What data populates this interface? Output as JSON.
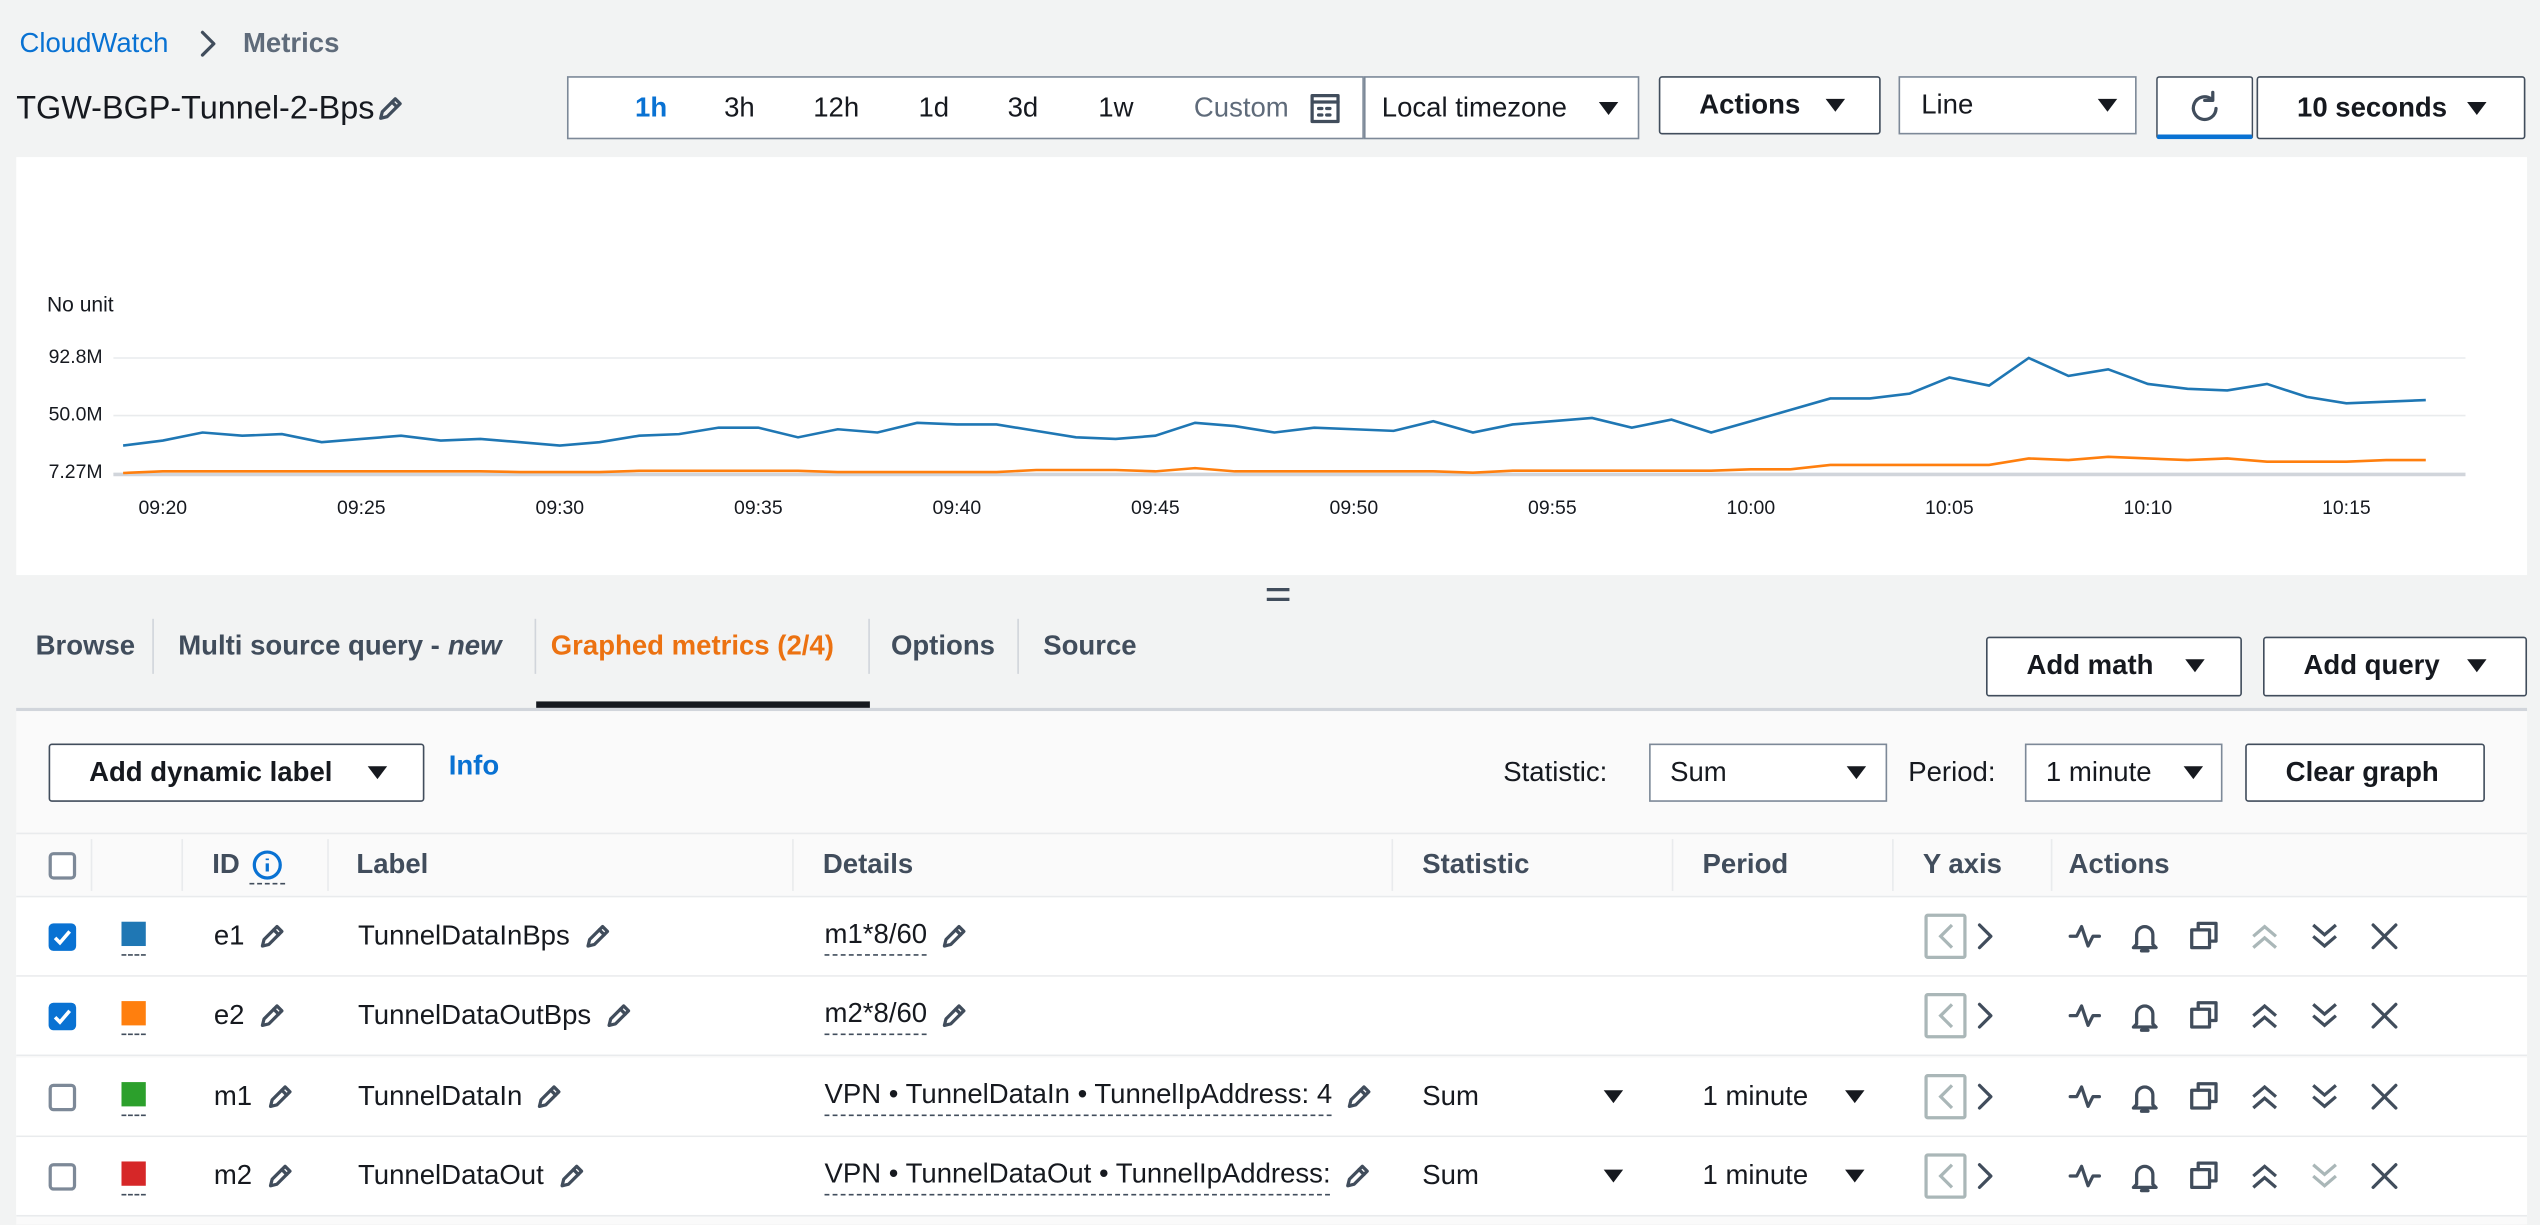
{
  "breadcrumb": [
    "CloudWatch",
    "Metrics"
  ],
  "title": "TGW-BGP-Tunnel-2-Bps",
  "time_ranges": [
    {
      "label": "1h",
      "selected": true
    },
    {
      "label": "3h"
    },
    {
      "label": "12h"
    },
    {
      "label": "1d"
    },
    {
      "label": "3d"
    },
    {
      "label": "1w"
    },
    {
      "label": "Custom"
    }
  ],
  "timezone": "Local timezone",
  "actions": "Actions",
  "graph_type": "Line",
  "refresh_interval": "10 seconds",
  "chart_data": {
    "type": "line",
    "ylabel": "No unit",
    "x": [
      "09:19",
      "09:20",
      "09:21",
      "09:22",
      "09:23",
      "09:24",
      "09:25",
      "09:26",
      "09:27",
      "09:28",
      "09:29",
      "09:30",
      "09:31",
      "09:32",
      "09:33",
      "09:34",
      "09:35",
      "09:36",
      "09:37",
      "09:38",
      "09:39",
      "09:40",
      "09:41",
      "09:42",
      "09:43",
      "09:44",
      "09:45",
      "09:46",
      "09:47",
      "09:48",
      "09:49",
      "09:50",
      "09:51",
      "09:52",
      "09:53",
      "09:54",
      "09:55",
      "09:56",
      "09:57",
      "09:58",
      "09:59",
      "10:00",
      "10:01",
      "10:02",
      "10:03",
      "10:04",
      "10:05",
      "10:06",
      "10:07",
      "10:08",
      "10:09",
      "10:10",
      "10:11",
      "10:12",
      "10:13",
      "10:14",
      "10:15",
      "10:16",
      "10:17"
    ],
    "series": [
      {
        "color": "#1f77b4",
        "values": [
          27700000,
          31400000,
          37400000,
          35000000,
          36200000,
          30200000,
          32600000,
          35000000,
          31400000,
          32600000,
          30200000,
          27700000,
          30200000,
          35000000,
          36200000,
          41000000,
          41000000,
          33800000,
          39800000,
          37400000,
          44600000,
          43400000,
          43400000,
          38600000,
          33800000,
          32600000,
          35000000,
          44600000,
          42200000,
          37400000,
          41000000,
          39800000,
          38600000,
          45800000,
          37400000,
          43400000,
          45800000,
          48200000,
          41000000,
          47000000,
          37400000,
          45800000,
          54200000,
          62700000,
          62700000,
          66300000,
          78300000,
          72300000,
          92800000,
          79500000,
          84400000,
          73500000,
          69900000,
          68700000,
          73500000,
          63900000,
          59100000,
          60300000,
          61500000
        ]
      },
      {
        "color": "#ff7f0e",
        "values": [
          7270000,
          8500000,
          8500000,
          8500000,
          8500000,
          8500000,
          8500000,
          8500000,
          8500000,
          8500000,
          8000000,
          8000000,
          8000000,
          8900000,
          8900000,
          8900000,
          8900000,
          8900000,
          8000000,
          8000000,
          8000000,
          8000000,
          8000000,
          9500000,
          9500000,
          9500000,
          8500000,
          10900000,
          8500000,
          8500000,
          8500000,
          8500000,
          8500000,
          8500000,
          7500000,
          9000000,
          9000000,
          9000000,
          9000000,
          9000000,
          9000000,
          10000000,
          10000000,
          13300000,
          13300000,
          13300000,
          13300000,
          13300000,
          18100000,
          16900000,
          19300000,
          18100000,
          16900000,
          18100000,
          15700000,
          15700000,
          15700000,
          16900000,
          16900000
        ]
      }
    ],
    "xlim": [
      "09:19",
      "10:18"
    ],
    "xticks": [
      "09:20",
      "09:25",
      "09:30",
      "09:35",
      "09:40",
      "09:45",
      "09:50",
      "09:55",
      "10:00",
      "10:05",
      "10:10",
      "10:15"
    ],
    "ylim": [
      7270000,
      92800000
    ],
    "yticks": [
      {
        "value": 92800000,
        "label": "92.8M"
      },
      {
        "value": 50000000,
        "label": "50.0M"
      },
      {
        "value": 7270000,
        "label": "7.27M"
      }
    ],
    "grid": true
  },
  "tabs": [
    {
      "label": "Browse"
    },
    {
      "label": "Multi source query -",
      "tag": "new"
    },
    {
      "label": "Graphed metrics (2/4)",
      "active": true
    },
    {
      "label": "Options"
    },
    {
      "label": "Source"
    }
  ],
  "tab_buttons": [
    "Add math",
    "Add query"
  ],
  "toolbar": {
    "add_dynamic_label": "Add dynamic label",
    "info": "Info",
    "statistic_label": "Statistic:",
    "statistic": "Sum",
    "period_label": "Period:",
    "period": "1 minute",
    "clear": "Clear graph"
  },
  "table": {
    "columns": [
      "ID",
      "Label",
      "Details",
      "Statistic",
      "Period",
      "Y axis",
      "Actions"
    ],
    "rows": [
      {
        "checked": true,
        "color": "#1f77b4",
        "id": "e1",
        "label": "TunnelDataInBps",
        "details": "m1*8/60",
        "can_move_up": false,
        "can_move_down": true
      },
      {
        "checked": true,
        "color": "#ff7f0e",
        "id": "e2",
        "label": "TunnelDataOutBps",
        "details": "m2*8/60",
        "can_move_up": true,
        "can_move_down": true
      },
      {
        "checked": false,
        "color": "#2ca02c",
        "id": "m1",
        "label": "TunnelDataIn",
        "details": "VPN • TunnelDataIn • TunnelIpAddress: 4",
        "statistic": "Sum",
        "period": "1 minute",
        "can_move_up": true,
        "can_move_down": true
      },
      {
        "checked": false,
        "color": "#d62728",
        "id": "m2",
        "label": "TunnelDataOut",
        "details": "VPN • TunnelDataOut • TunnelIpAddress:",
        "statistic": "Sum",
        "period": "1 minute",
        "can_move_up": true,
        "can_move_down": false
      }
    ]
  }
}
